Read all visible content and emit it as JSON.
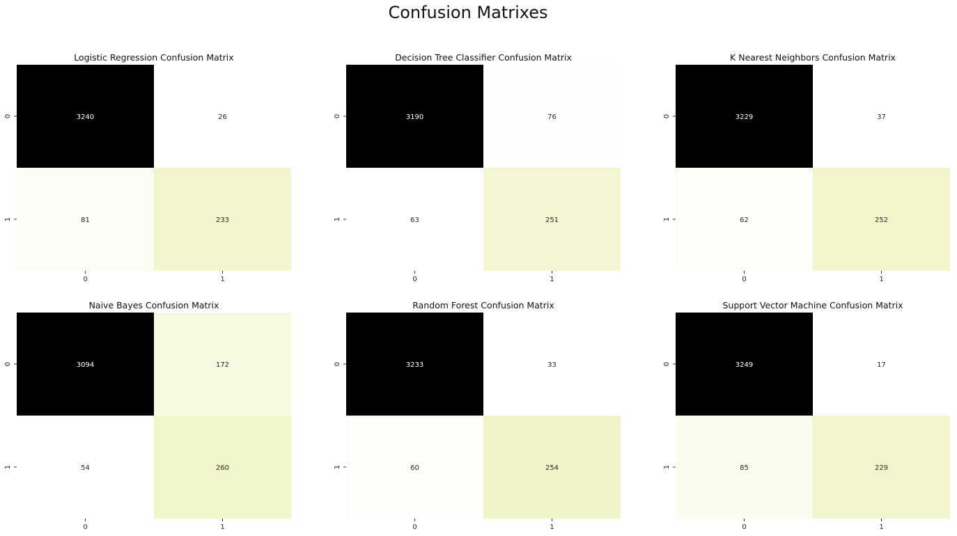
{
  "chart_data": {
    "type": "heatmap",
    "title": "Confusion Matrixes",
    "x_tick_labels": [
      "0",
      "1"
    ],
    "y_tick_labels": [
      "0",
      "1"
    ],
    "colormap": {
      "low": "#ffffff",
      "mid": "#eef2bc",
      "high": "#000000"
    },
    "text_colors": {
      "on_dark": "#ffffff",
      "on_light": "#262626"
    },
    "matrices": [
      {
        "title": "Logistic Regression Confusion Matrix",
        "values": [
          [
            3240,
            26
          ],
          [
            81,
            233
          ]
        ]
      },
      {
        "title": "Decision Tree Classifier Confusion Matrix",
        "values": [
          [
            3190,
            76
          ],
          [
            63,
            251
          ]
        ]
      },
      {
        "title": "K Nearest Neighbors Confusion Matrix",
        "values": [
          [
            3229,
            37
          ],
          [
            62,
            252
          ]
        ]
      },
      {
        "title": "Naive Bayes Confusion Matrix",
        "values": [
          [
            3094,
            172
          ],
          [
            54,
            260
          ]
        ]
      },
      {
        "title": "Random Forest Confusion Matrix",
        "values": [
          [
            3233,
            33
          ],
          [
            60,
            254
          ]
        ]
      },
      {
        "title": "Support Vector Machine Confusion Matrix",
        "values": [
          [
            3249,
            17
          ],
          [
            85,
            229
          ]
        ]
      }
    ]
  }
}
